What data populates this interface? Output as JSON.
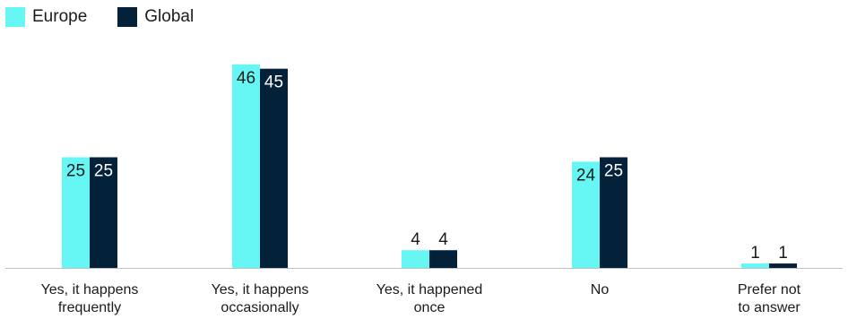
{
  "chart_data": {
    "type": "bar",
    "title": "",
    "xlabel": "",
    "ylabel": "",
    "ylim": [
      0,
      50
    ],
    "grid": false,
    "legend_position": "top-left",
    "categories": [
      [
        "Yes, it happens",
        "frequently"
      ],
      [
        "Yes, it happens",
        "occasionally"
      ],
      [
        "Yes, it happened",
        "once"
      ],
      [
        "No"
      ],
      [
        "Prefer not",
        "to answer"
      ]
    ],
    "series": [
      {
        "name": "Europe",
        "color": "#66F7F4",
        "values": [
          25,
          46,
          4,
          24,
          1
        ]
      },
      {
        "name": "Global",
        "color": "#04213A",
        "values": [
          25,
          45,
          4,
          25,
          1
        ]
      }
    ]
  }
}
